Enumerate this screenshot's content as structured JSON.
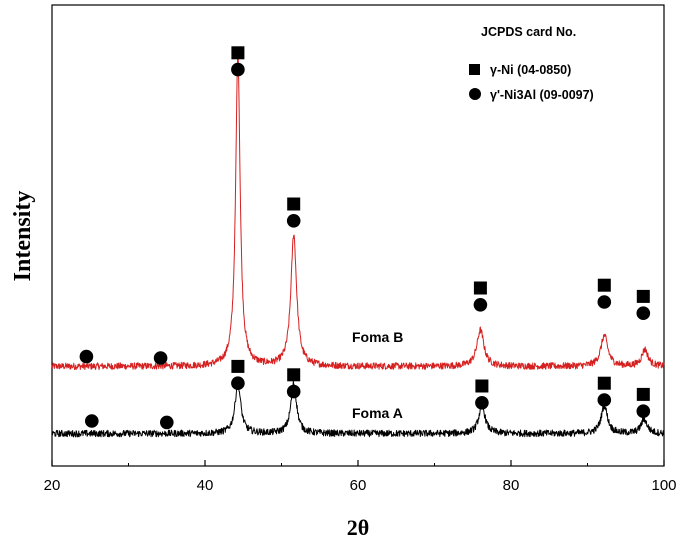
{
  "chart_data": {
    "type": "line",
    "xlabel": "2θ",
    "ylabel": "Intensity",
    "xlim": [
      20,
      100
    ],
    "xticks": [
      20,
      40,
      60,
      80,
      100
    ],
    "yticks_shown": false,
    "legend": {
      "title": "JCPDS card No.",
      "placement": "top-right",
      "entries": [
        {
          "marker": "square",
          "text": "γ-Ni (04-0850)"
        },
        {
          "marker": "circle",
          "text": "γ'-Ni3Al (09-0097)"
        }
      ]
    },
    "series": [
      {
        "name": "Foma B",
        "color": "#d62020",
        "baseline": 0.12,
        "noise": 0.012,
        "peaks": [
          {
            "x": 44.3,
            "height": 1.12,
            "width": 0.35
          },
          {
            "x": 51.6,
            "height": 0.47,
            "width": 0.45
          },
          {
            "x": 76.0,
            "height": 0.13,
            "width": 0.55
          },
          {
            "x": 92.2,
            "height": 0.11,
            "width": 0.55
          },
          {
            "x": 97.5,
            "height": 0.06,
            "width": 0.5
          }
        ],
        "markers": [
          {
            "x": 24.5,
            "type": "circle",
            "y": 0.155
          },
          {
            "x": 34.2,
            "type": "circle",
            "y": 0.15
          },
          {
            "x": 44.3,
            "type": "square",
            "y": 1.24
          },
          {
            "x": 44.3,
            "type": "circle",
            "y": 1.18
          },
          {
            "x": 51.6,
            "type": "square",
            "y": 0.7
          },
          {
            "x": 51.6,
            "type": "circle",
            "y": 0.64
          },
          {
            "x": 76.0,
            "type": "square",
            "y": 0.4
          },
          {
            "x": 76.0,
            "type": "circle",
            "y": 0.34
          },
          {
            "x": 92.2,
            "type": "square",
            "y": 0.41
          },
          {
            "x": 92.2,
            "type": "circle",
            "y": 0.35
          },
          {
            "x": 97.3,
            "type": "square",
            "y": 0.37
          },
          {
            "x": 97.3,
            "type": "circle",
            "y": 0.31
          }
        ]
      },
      {
        "name": "Foma A",
        "color": "#000000",
        "baseline": -0.12,
        "noise": 0.012,
        "peaks": [
          {
            "x": 44.3,
            "height": 0.18,
            "width": 0.45
          },
          {
            "x": 51.6,
            "height": 0.18,
            "width": 0.45
          },
          {
            "x": 76.2,
            "height": 0.1,
            "width": 0.5
          },
          {
            "x": 92.2,
            "height": 0.1,
            "width": 0.5
          },
          {
            "x": 97.4,
            "height": 0.05,
            "width": 0.5
          }
        ],
        "markers": [
          {
            "x": 25.2,
            "type": "circle",
            "y": -0.075
          },
          {
            "x": 35.0,
            "type": "circle",
            "y": -0.08
          },
          {
            "x": 44.3,
            "type": "square",
            "y": 0.12
          },
          {
            "x": 44.3,
            "type": "circle",
            "y": 0.06
          },
          {
            "x": 51.6,
            "type": "square",
            "y": 0.09
          },
          {
            "x": 51.6,
            "type": "circle",
            "y": 0.03
          },
          {
            "x": 76.2,
            "type": "square",
            "y": 0.05
          },
          {
            "x": 76.2,
            "type": "circle",
            "y": -0.01
          },
          {
            "x": 92.2,
            "type": "square",
            "y": 0.06
          },
          {
            "x": 92.2,
            "type": "circle",
            "y": 0.0
          },
          {
            "x": 97.3,
            "type": "square",
            "y": 0.02
          },
          {
            "x": 97.3,
            "type": "circle",
            "y": -0.04
          }
        ]
      }
    ]
  }
}
